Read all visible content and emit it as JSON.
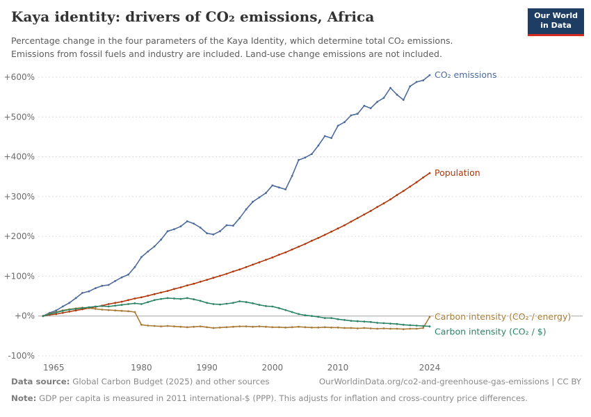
{
  "header": {
    "title": "Kaya identity: drivers of CO₂ emissions, Africa",
    "subtitle": "Percentage change in the four parameters of the Kaya Identity, which determine total CO₂ emissions.\nEmissions from fossil fuels and industry are included. Land-use change emissions are not included."
  },
  "logo": {
    "line1": "Our World",
    "line2": "in Data",
    "bg": "#1d3d63",
    "accent": "#d42a20"
  },
  "chart_data": {
    "type": "line",
    "title": "Kaya identity: drivers of CO₂ emissions, Africa",
    "xlabel": "",
    "ylabel": "",
    "grid": "dashed-horizontal",
    "legend_position": "line-end-labels-right",
    "x_start": 1965,
    "x_end": 2024,
    "x_step": 1,
    "ylim": [
      -100,
      600
    ],
    "yticks": [
      {
        "value": 600,
        "label": "+600%"
      },
      {
        "value": 500,
        "label": "+500%"
      },
      {
        "value": 400,
        "label": "+400%"
      },
      {
        "value": 300,
        "label": "+300%"
      },
      {
        "value": 200,
        "label": "+200%"
      },
      {
        "value": 100,
        "label": "+100%"
      },
      {
        "value": 0,
        "label": "+0%"
      },
      {
        "value": -100,
        "label": "-100%"
      }
    ],
    "xticks": [
      {
        "value": 1965,
        "label": "1965"
      },
      {
        "value": 1980,
        "label": "1980"
      },
      {
        "value": 1990,
        "label": "1990"
      },
      {
        "value": 2000,
        "label": "2000"
      },
      {
        "value": 2010,
        "label": "2010"
      },
      {
        "value": 2024,
        "label": "2024"
      }
    ],
    "series": [
      {
        "name": "CO₂ emissions",
        "color": "#4c6a9c",
        "label_dy": 0,
        "values": [
          0,
          8,
          14,
          24,
          33,
          45,
          58,
          62,
          70,
          76,
          78,
          88,
          97,
          104,
          123,
          148,
          162,
          175,
          192,
          213,
          218,
          225,
          238,
          232,
          222,
          208,
          205,
          213,
          228,
          227,
          246,
          268,
          287,
          298,
          309,
          328,
          323,
          318,
          352,
          392,
          398,
          407,
          428,
          452,
          447,
          478,
          487,
          504,
          508,
          528,
          522,
          538,
          548,
          573,
          556,
          543,
          577,
          588,
          592,
          605
        ]
      },
      {
        "name": "Population",
        "color": "#b13507",
        "label_dy": 0,
        "values": [
          0,
          3,
          5,
          8,
          11,
          14,
          17,
          20,
          23,
          26,
          30,
          33,
          36,
          40,
          44,
          47,
          51,
          55,
          59,
          63,
          68,
          72,
          77,
          81,
          86,
          91,
          96,
          101,
          106,
          112,
          117,
          123,
          129,
          135,
          141,
          147,
          154,
          160,
          167,
          174,
          181,
          189,
          196,
          204,
          212,
          220,
          228,
          237,
          246,
          255,
          264,
          274,
          283,
          293,
          304,
          314,
          325,
          336,
          348,
          359
        ]
      },
      {
        "name": "Carbon intensity (CO₂ / energy)",
        "color": "#a87a33",
        "label_dy": 0,
        "values": [
          0,
          6,
          10,
          14,
          17,
          19,
          21,
          20,
          18,
          16,
          15,
          14,
          13,
          12,
          10,
          -22,
          -24,
          -25,
          -26,
          -25,
          -26,
          -27,
          -28,
          -27,
          -26,
          -28,
          -30,
          -29,
          -28,
          -27,
          -26,
          -26,
          -27,
          -26,
          -27,
          -28,
          -28,
          -29,
          -28,
          -27,
          -28,
          -29,
          -29,
          -28,
          -29,
          -29,
          -30,
          -30,
          -31,
          -30,
          -31,
          -32,
          -31,
          -32,
          -32,
          -33,
          -32,
          -32,
          -30,
          -2
        ]
      },
      {
        "name": "Carbon intensity (CO₂ / $)",
        "color": "#2c8465",
        "label_dy": 8,
        "values": [
          0,
          5,
          9,
          13,
          16,
          18,
          20,
          22,
          24,
          25,
          24,
          26,
          28,
          30,
          32,
          30,
          35,
          40,
          43,
          45,
          44,
          43,
          45,
          42,
          38,
          33,
          30,
          29,
          31,
          33,
          37,
          35,
          32,
          28,
          25,
          24,
          20,
          15,
          10,
          5,
          2,
          0,
          -2,
          -5,
          -5,
          -8,
          -10,
          -12,
          -13,
          -14,
          -15,
          -17,
          -18,
          -19,
          -20,
          -22,
          -23,
          -24,
          -25,
          -26
        ]
      }
    ]
  },
  "footer": {
    "data_source_label": "Data source:",
    "data_source_text": " Global Carbon Budget (2025) and other sources",
    "citation": "OurWorldinData.org/co2-and-greenhouse-gas-emissions | CC BY",
    "note_label": "Note:",
    "note_text": " GDP per capita is measured in 2011 international-$ (PPP). This adjusts for inflation and cross-country price differences."
  }
}
